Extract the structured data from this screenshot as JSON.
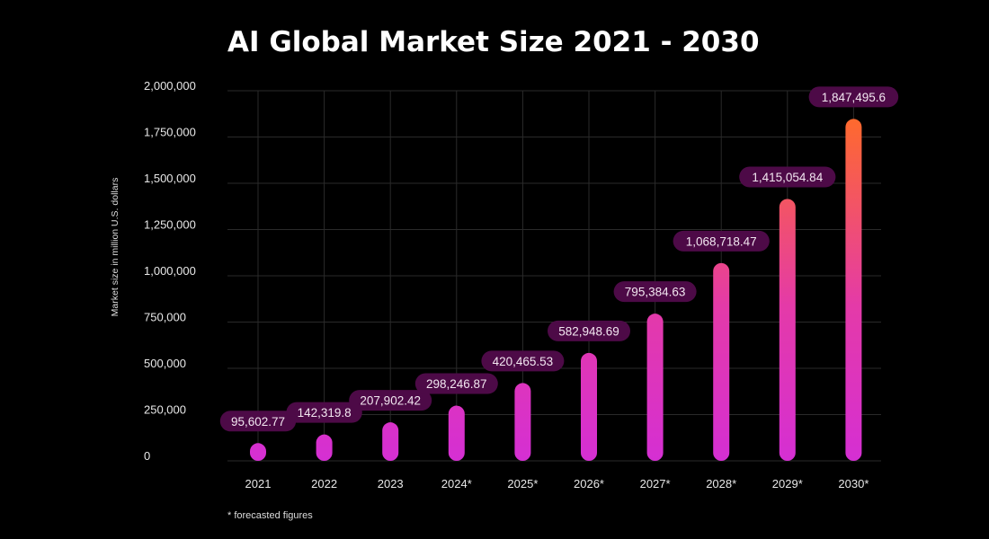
{
  "chart_data": {
    "type": "bar",
    "title": "AI Global Market Size 2021 - 2030",
    "ylabel": "Market size in million U.S. dollars",
    "xlabel": "",
    "categories": [
      "2021",
      "2022",
      "2023",
      "2024*",
      "2025*",
      "2026*",
      "2027*",
      "2028*",
      "2029*",
      "2030*"
    ],
    "values": [
      95602.77,
      142319.8,
      207902.42,
      298246.87,
      420465.53,
      582948.69,
      795384.63,
      1068718.47,
      1415054.84,
      1847495.6
    ],
    "value_labels": [
      "95,602.77",
      "142,319.8",
      "207,902.42",
      "298,246.87",
      "420,465.53",
      "582,948.69",
      "795,384.63",
      "1,068,718.47",
      "1,415,054.84",
      "1,847,495.6"
    ],
    "yticks": [
      0,
      250000,
      500000,
      750000,
      1000000,
      1250000,
      1500000,
      1750000,
      2000000
    ],
    "ytick_labels": [
      "0",
      "250,000",
      "500,000",
      "750,000",
      "1,000,000",
      "1,250,000",
      "1,500,000",
      "1,750,000",
      "2,000,000"
    ],
    "ylim": [
      0,
      2000000
    ],
    "grid": true,
    "footnote": "* forecasted figures",
    "colors": {
      "bar_bottom": "#d52fd3",
      "bar_top": "#ff6a2c",
      "label_pill": "#4d0a47",
      "grid": "#2a2a2a",
      "background": "#000000"
    }
  }
}
